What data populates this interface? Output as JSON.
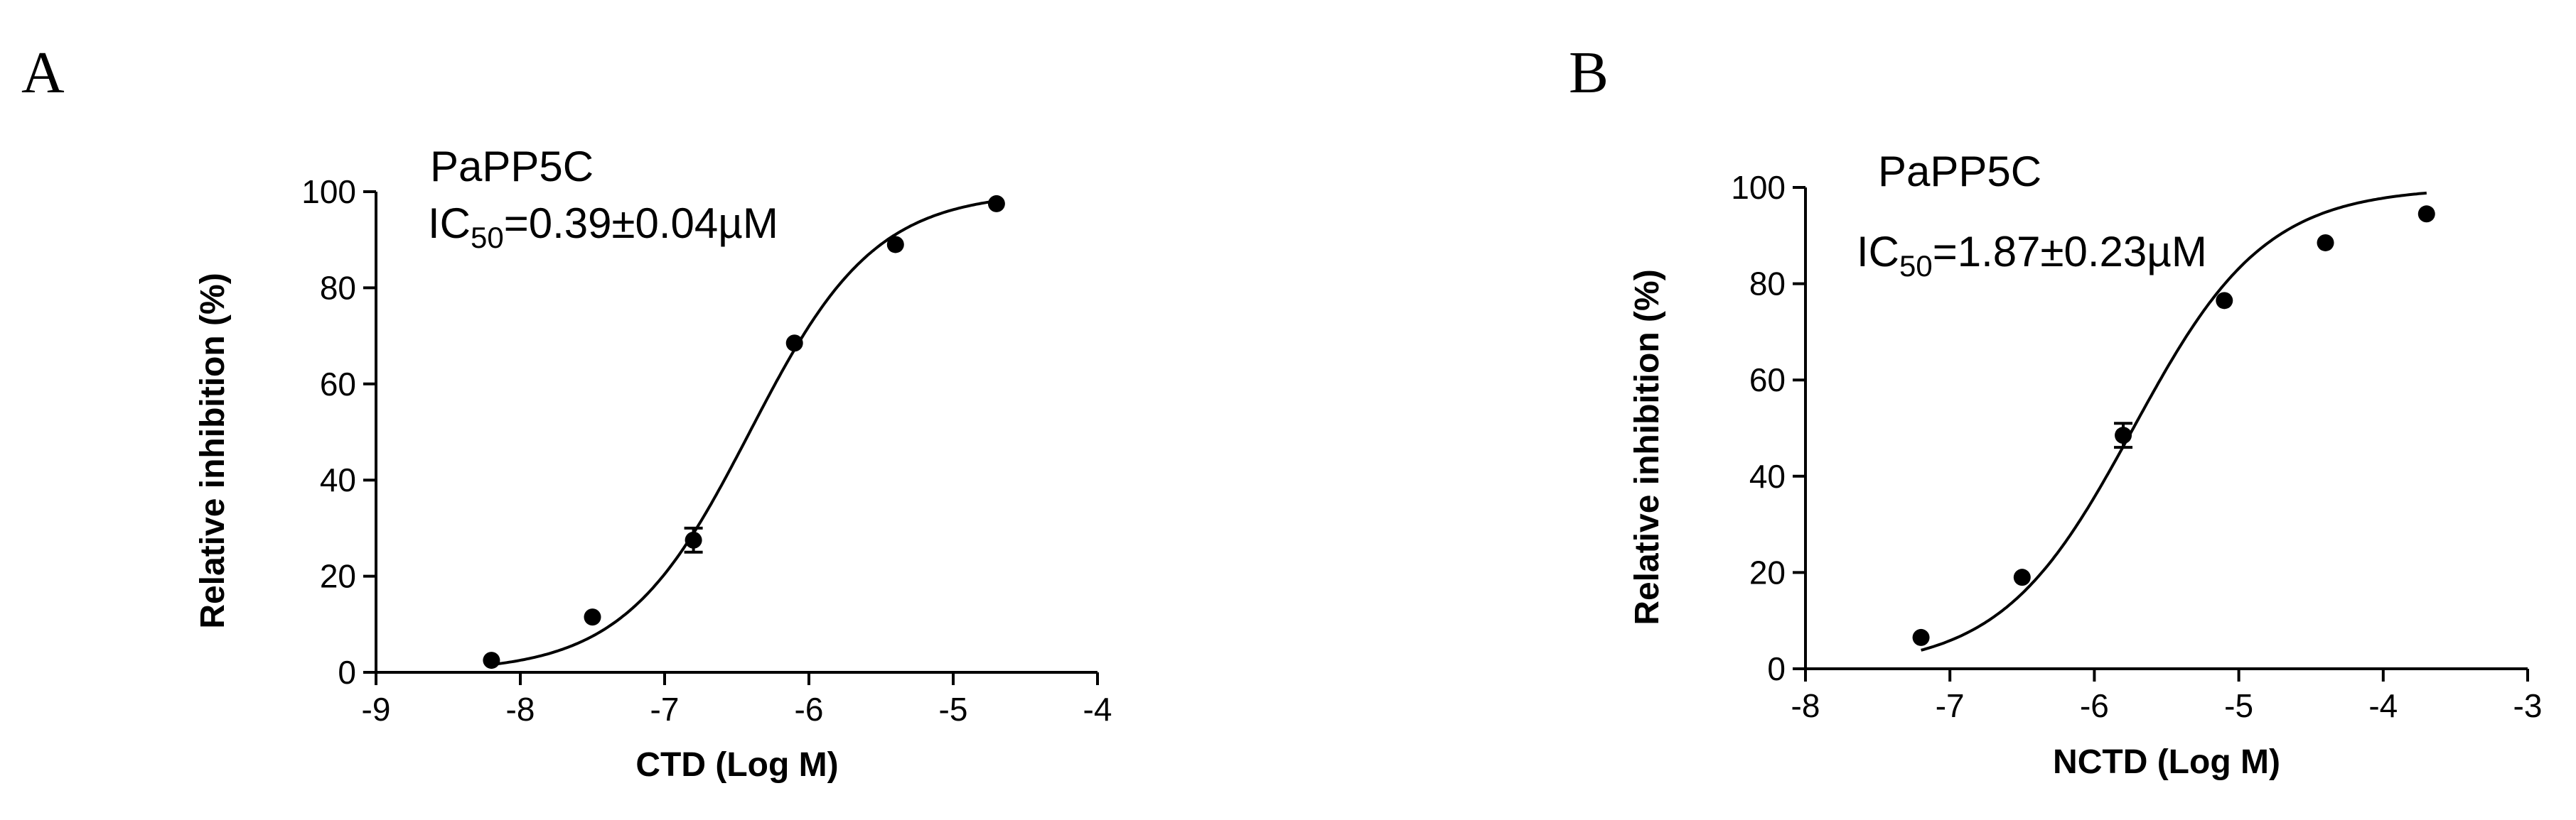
{
  "chart_data": [
    {
      "panel_label": "A",
      "type": "scatter",
      "fit": "sigmoidal dose-response curve",
      "annotation": {
        "name": "PaPP5C",
        "ic50_prefix": "IC",
        "ic50_subscript": "50",
        "ic50_value": "=0.39±0.04µM"
      },
      "xlabel": "CTD (Log M)",
      "ylabel": "Relative inhibition (%)",
      "xlim": [
        -9,
        -4
      ],
      "ylim": [
        0,
        100
      ],
      "x_ticks": [
        "-9",
        "-8",
        "-7",
        "-6",
        "-5",
        "-4"
      ],
      "y_ticks": [
        "0",
        "20",
        "40",
        "60",
        "80",
        "100"
      ],
      "grid": false,
      "points": [
        {
          "x": -8.2,
          "y": 2.5,
          "err": 0
        },
        {
          "x": -7.5,
          "y": 11.5,
          "err": 0
        },
        {
          "x": -6.8,
          "y": 27.5,
          "err": 2.5
        },
        {
          "x": -6.1,
          "y": 68.5,
          "err": 0
        },
        {
          "x": -5.4,
          "y": 89,
          "err": 0
        },
        {
          "x": -4.7,
          "y": 97.5,
          "err": 0
        }
      ],
      "curve": {
        "bottom": 0,
        "top": 100,
        "logIC50": -6.41,
        "hill": 1.0,
        "x_range": [
          -8.2,
          -4.7
        ]
      }
    },
    {
      "panel_label": "B",
      "type": "scatter",
      "fit": "sigmoidal dose-response curve",
      "annotation": {
        "name": "PaPP5C",
        "ic50_prefix": "IC",
        "ic50_subscript": "50",
        "ic50_value": "=1.87±0.23µM"
      },
      "xlabel": "NCTD (Log M)",
      "ylabel": "Relative inhibition (%)",
      "xlim": [
        -8,
        -3
      ],
      "ylim": [
        0,
        100
      ],
      "x_ticks": [
        "-8",
        "-7",
        "-6",
        "-5",
        "-4",
        "-3"
      ],
      "y_ticks": [
        "0",
        "20",
        "40",
        "60",
        "80",
        "100"
      ],
      "grid": false,
      "points": [
        {
          "x": -7.2,
          "y": 6.5,
          "err": 0
        },
        {
          "x": -6.5,
          "y": 19,
          "err": 0
        },
        {
          "x": -5.8,
          "y": 48.5,
          "err": 2.5
        },
        {
          "x": -5.1,
          "y": 76.5,
          "err": 0
        },
        {
          "x": -4.4,
          "y": 88.5,
          "err": 0
        },
        {
          "x": -3.7,
          "y": 94.5,
          "err": 0
        }
      ],
      "curve": {
        "bottom": 0,
        "top": 100,
        "logIC50": -5.73,
        "hill": 0.95,
        "x_range": [
          -7.2,
          -3.7
        ]
      }
    }
  ]
}
